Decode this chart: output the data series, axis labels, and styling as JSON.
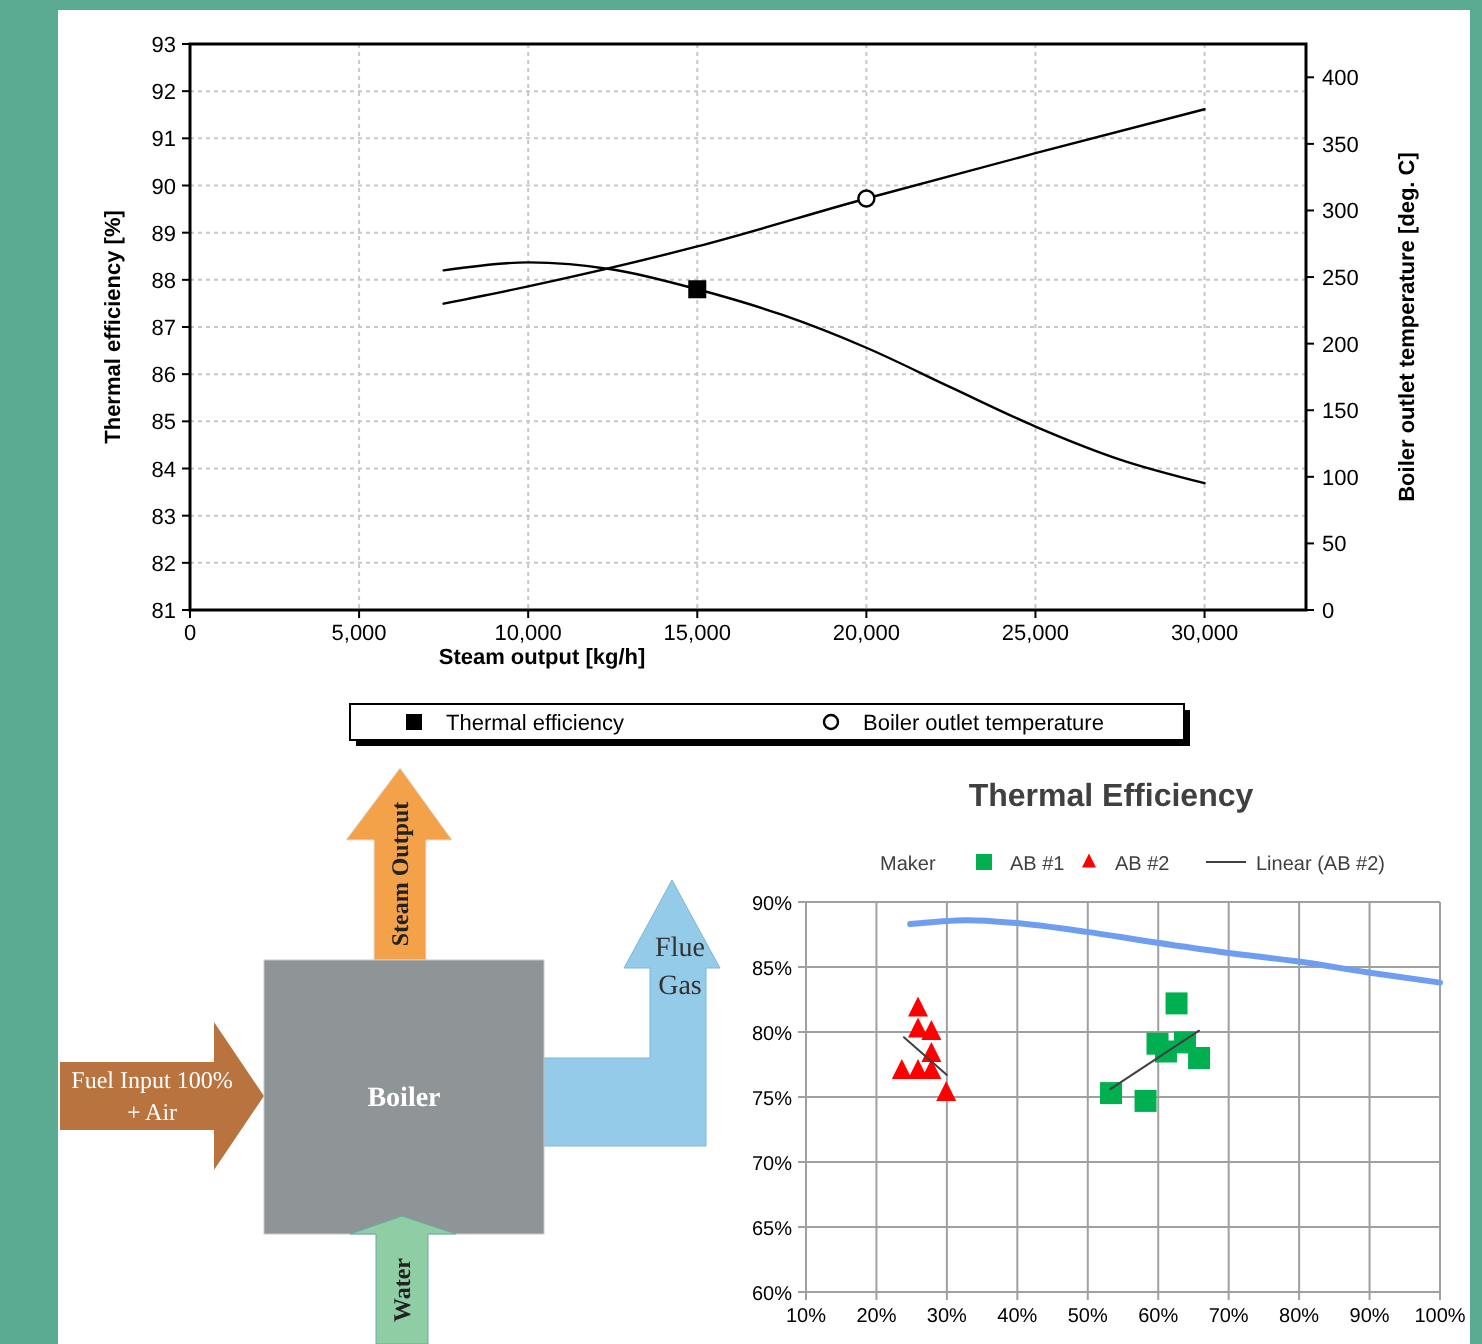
{
  "chart_data": [
    {
      "type": "line",
      "xlabel": "Steam output [kg/h]",
      "ylabel": "Thermal efficiency [%]",
      "y2label": "Boiler outlet temperature [deg. C]",
      "xlim": [
        0,
        33000
      ],
      "xticks": [
        0,
        {
          "value": 5000,
          "label": "5,000"
        },
        {
          "value": 10000,
          "label": "10,000"
        },
        {
          "value": 15000,
          "label": "15,000"
        },
        {
          "value": 20000,
          "label": "20,000"
        },
        {
          "value": 25000,
          "label": "25,000"
        },
        {
          "value": 30000,
          "label": "30,000"
        }
      ],
      "ylim": [
        81,
        93
      ],
      "yticks": [
        81,
        82,
        83,
        84,
        85,
        86,
        87,
        88,
        89,
        90,
        91,
        92,
        93
      ],
      "y2lim": [
        0,
        425
      ],
      "y2ticks": [
        0,
        50,
        100,
        150,
        200,
        250,
        300,
        350,
        400
      ],
      "grid": true,
      "legend": "bottom",
      "series": [
        {
          "name": "Thermal efficiency",
          "color": "#000000",
          "x": [
            7500,
            10000,
            12500,
            15000,
            17500,
            20000,
            22500,
            25000,
            27500,
            30000
          ],
          "values": [
            88.2,
            88.37,
            88.22,
            87.8,
            87.26,
            86.56,
            85.72,
            84.89,
            84.19,
            83.69
          ]
        },
        {
          "type": "scatter",
          "color": "#000000",
          "marker": "square",
          "x": [
            15000
          ],
          "values": [
            87.8
          ]
        },
        {
          "name": "Boiler outlet temperature",
          "color": "#000000",
          "axis": "y2",
          "x": [
            7500,
            10000,
            15000,
            20000,
            25000,
            30000
          ],
          "values": [
            230,
            243,
            273,
            309,
            343,
            376
          ]
        },
        {
          "type": "scatter",
          "color": "#000000",
          "marker": "circle",
          "axis": "y2",
          "x": [
            20000
          ],
          "values": [
            309
          ]
        }
      ]
    },
    {
      "type": "other",
      "annotations": [
        "Steam Output",
        "Fuel Input 100%\n+ Air",
        "Boiler",
        "Flue\nGas",
        "Water"
      ]
    },
    {
      "type": "scatter",
      "title": "Thermal Efficiency",
      "legend_title": "Maker",
      "legend": "top",
      "xlim": [
        10,
        100
      ],
      "xticks": [
        {
          "value": 10,
          "label": "10%"
        },
        {
          "value": 20,
          "label": "20%"
        },
        {
          "value": 30,
          "label": "30%"
        },
        {
          "value": 40,
          "label": "40%"
        },
        {
          "value": 50,
          "label": "50%"
        },
        {
          "value": 60,
          "label": "60%"
        },
        {
          "value": 70,
          "label": "70%"
        },
        {
          "value": 80,
          "label": "80%"
        },
        {
          "value": 90,
          "label": "90%"
        },
        {
          "value": 100,
          "label": "100%"
        }
      ],
      "ylim": [
        60,
        90
      ],
      "yticks": [
        {
          "value": 60,
          "label": "60%"
        },
        {
          "value": 65,
          "label": "65%"
        },
        {
          "value": 70,
          "label": "70%"
        },
        {
          "value": 75,
          "label": "75%"
        },
        {
          "value": 80,
          "label": "80%"
        },
        {
          "value": 85,
          "label": "85%"
        },
        {
          "value": 90,
          "label": "90%"
        }
      ],
      "grid": true,
      "series": [
        {
          "type": "line",
          "color": "#6f9ef0",
          "x": [
            24.8,
            29,
            32.9,
            39.5,
            49.9,
            59.4,
            69.7,
            80.2,
            89.6,
            100
          ],
          "values": [
            88.3,
            88.5,
            88.6,
            88.4,
            87.7,
            86.9,
            86.1,
            85.4,
            84.6,
            83.8
          ]
        },
        {
          "name": "AB #1",
          "color": "#00b050",
          "marker": "square",
          "x": [
            53.3,
            58.2,
            62.6,
            59.9,
            61.1,
            63.8,
            65.8
          ],
          "values": [
            75.3,
            74.7,
            82.2,
            79.1,
            78.5,
            79.2,
            78
          ]
        },
        {
          "name": "AB #2",
          "color": "#ff0000",
          "marker": "triangle",
          "x": [
            25.9,
            25.9,
            27.8,
            27.8,
            23.6,
            25.9,
            27.8,
            29.9
          ],
          "values": [
            81.8,
            80.2,
            80,
            78.3,
            77,
            77,
            77,
            75.3
          ]
        },
        {
          "name": "Linear (AB #2)",
          "type": "line",
          "color": "#404040",
          "x": [
            23.9,
            30
          ],
          "values": [
            79.6,
            76.7
          ]
        },
        {
          "type": "line",
          "color": "#404040",
          "x": [
            53.2,
            65.8
          ],
          "values": [
            75.6,
            80.1
          ]
        }
      ]
    }
  ]
}
